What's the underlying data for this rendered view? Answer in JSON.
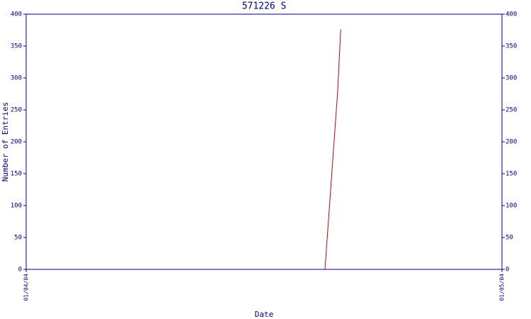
{
  "chart_data": {
    "type": "line",
    "title": "571226 S",
    "xlabel": "Date",
    "ylabel": "Number of Entries",
    "x": [
      0.628,
      0.655,
      0.661
    ],
    "xlim": [
      0,
      1
    ],
    "xticks": [
      {
        "value": 0,
        "label": "01/04/04"
      },
      {
        "value": 1,
        "label": "01/05/04"
      }
    ],
    "series": [
      {
        "color": "#cc0000",
        "values": [
          0,
          283,
          376
        ]
      }
    ],
    "ylim": [
      0,
      400
    ],
    "yticks": [
      0,
      50,
      100,
      150,
      200,
      250,
      300,
      350,
      400
    ],
    "y2lim": [
      0,
      400
    ],
    "y2ticks": [
      0,
      50,
      100,
      150,
      200,
      250,
      300,
      350,
      400
    ],
    "axis_color": "#000080"
  }
}
